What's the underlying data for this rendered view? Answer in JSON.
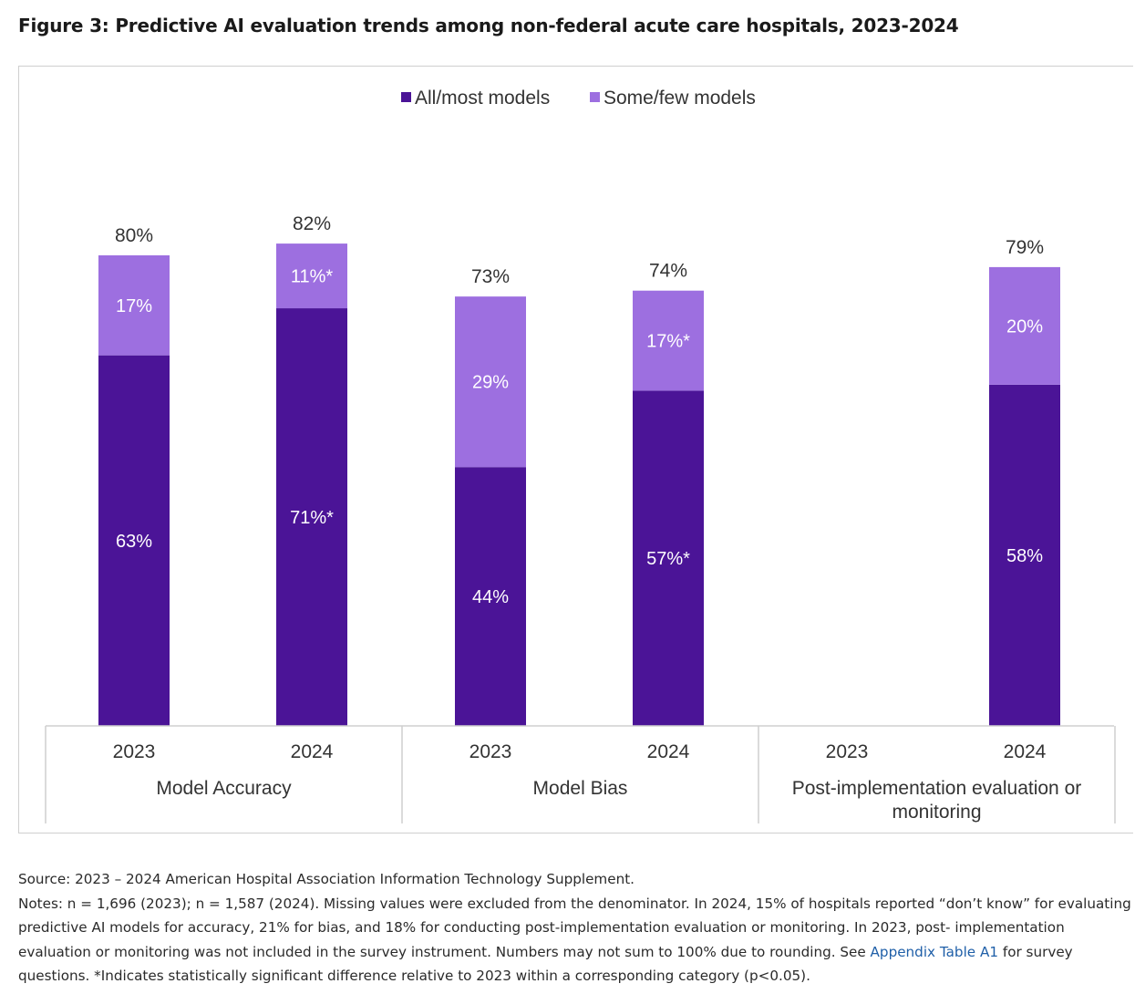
{
  "title": "Figure 3: Predictive AI evaluation trends among non-federal acute care hospitals, 2023-2024",
  "colors": {
    "all_most": "#4b1497",
    "some_few": "#9d6fe0"
  },
  "chart_data": {
    "type": "bar",
    "stacked": true,
    "legend": [
      "All/most models",
      "Some/few models"
    ],
    "legend_position": "top-center",
    "groups": [
      {
        "name": "Model Accuracy",
        "bars": [
          {
            "year": "2023",
            "all_most": 63,
            "all_most_label": "63%",
            "some_few": 17,
            "some_few_label": "17%",
            "total_label": "80%"
          },
          {
            "year": "2024",
            "all_most": 71,
            "all_most_label": "71%*",
            "some_few": 11,
            "some_few_label": "11%*",
            "total_label": "82%"
          }
        ]
      },
      {
        "name": "Model Bias",
        "bars": [
          {
            "year": "2023",
            "all_most": 44,
            "all_most_label": "44%",
            "some_few": 29,
            "some_few_label": "29%",
            "total_label": "73%"
          },
          {
            "year": "2024",
            "all_most": 57,
            "all_most_label": "57%*",
            "some_few": 17,
            "some_few_label": "17%*",
            "total_label": "74%"
          }
        ]
      },
      {
        "name": "Post-implementation evaluation or monitoring",
        "name_lines": [
          "Post-implementation evaluation or",
          "monitoring"
        ],
        "bars": [
          {
            "year": "2023",
            "all_most": null,
            "some_few": null
          },
          {
            "year": "2024",
            "all_most": 58,
            "all_most_label": "58%",
            "some_few": 20,
            "some_few_label": "20%",
            "total_label": "79%"
          }
        ]
      }
    ],
    "ylim": [
      0,
      100
    ],
    "grid": false
  },
  "source": "Source: 2023 – 2024 American Hospital Association Information Technology Supplement.",
  "notes": {
    "before_link": "Notes: n = 1,696 (2023); n = 1,587 (2024). Missing values were excluded from the denominator. In 2024, 15% of hospitals reported “don’t know” for evaluating predictive AI models for accuracy, 21% for bias, and 18% for conducting post-implementation evaluation or monitoring. In 2023, post- implementation evaluation or monitoring was not included in the survey instrument. Numbers may not sum to 100% due to rounding. See ",
    "link": "Appendix Table A1",
    "after_link": " for survey questions. *Indicates statistically significant difference relative to 2023 within a corresponding category (p<0.05)."
  }
}
